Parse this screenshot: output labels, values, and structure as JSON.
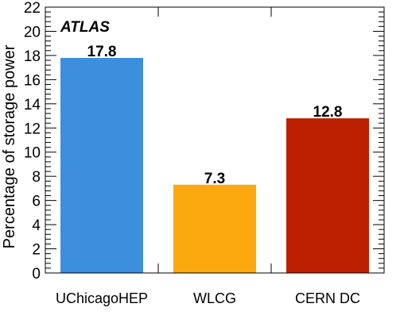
{
  "chart_data": {
    "type": "bar",
    "experiment_label": "ATLAS",
    "ylabel": "Percentage of storage power",
    "xlabel": "",
    "ylim": [
      0,
      22
    ],
    "yticks": [
      0,
      2,
      4,
      6,
      8,
      10,
      12,
      14,
      16,
      18,
      20,
      22
    ],
    "categories": [
      "UChicagoHEP",
      "WLCG",
      "CERN DC"
    ],
    "values": [
      17.8,
      7.3,
      12.8
    ],
    "value_labels": [
      "17.8",
      "7.3",
      "12.8"
    ],
    "colors": [
      "#3c8fdc",
      "#fca910",
      "#bc2000"
    ],
    "grid": false,
    "legend": "none"
  }
}
